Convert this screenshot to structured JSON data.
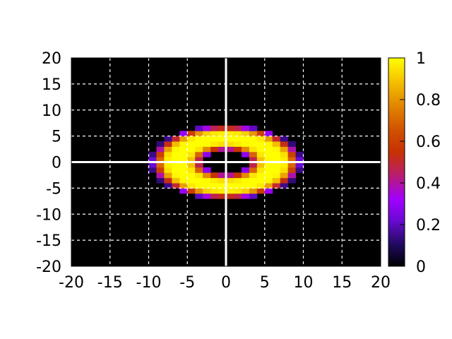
{
  "chart_data": {
    "type": "heatmap",
    "title": "",
    "xlabel": "",
    "ylabel": "",
    "xlim": [
      -20,
      20
    ],
    "ylim": [
      -20,
      20
    ],
    "x_ticks": [
      "-20",
      "-15",
      "-10",
      "-5",
      "0",
      "5",
      "10",
      "15",
      "20"
    ],
    "y_ticks": [
      "20",
      "15",
      "10",
      "5",
      "0",
      "-5",
      "-10",
      "-15",
      "-20"
    ],
    "grid": true,
    "grid_style": "dashed white",
    "axis_lines": "x=0 and y=0 drawn in solid white",
    "cell_size": 1,
    "colorbar": {
      "range": [
        0,
        1
      ],
      "tick_labels": [
        "1",
        "0.8",
        "0.6",
        "0.4",
        "0.2",
        "0"
      ],
      "colormap": [
        "#000000",
        "#1e0a5a",
        "#6a0ad2",
        "#a000ff",
        "#bb2060",
        "#c83200",
        "#d05000",
        "#e38a00",
        "#f6c800",
        "#ffff00"
      ]
    },
    "field": {
      "description": "annular ring centered at origin",
      "center": [
        0,
        0
      ],
      "peak_radius_x": 6.3,
      "peak_radius_y": 4.6,
      "ring_halfwidth": 2.3,
      "peak_value": 1.0
    }
  }
}
